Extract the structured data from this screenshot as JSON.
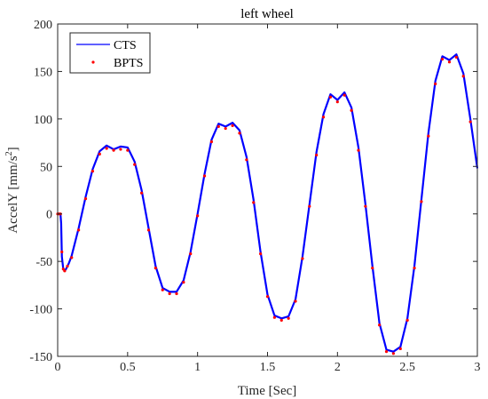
{
  "chart_data": {
    "type": "line",
    "title": "left wheel",
    "xlabel": "Time [Sec]",
    "ylabel_main": "AccelY [mm/s",
    "ylabel_sup": "2",
    "ylabel_close": "]",
    "xlim": [
      0,
      3
    ],
    "ylim": [
      -150,
      200
    ],
    "xticks": [
      0,
      0.5,
      1,
      1.5,
      2,
      2.5,
      3
    ],
    "xtick_labels": [
      "0",
      "0.5",
      "1",
      "1.5",
      "2",
      "2.5",
      "3"
    ],
    "yticks": [
      -150,
      -100,
      -50,
      0,
      50,
      100,
      150,
      200
    ],
    "ytick_labels": [
      "-150",
      "-100",
      "-50",
      "0",
      "50",
      "100",
      "150",
      "200"
    ],
    "grid": false,
    "legend_position": "top-left",
    "series": [
      {
        "name": "CTS",
        "style": "line",
        "color": "#0000ff",
        "x": [
          0,
          0.02,
          0.025,
          0.03,
          0.04,
          0.05,
          0.06,
          0.08,
          0.1,
          0.15,
          0.2,
          0.25,
          0.3,
          0.35,
          0.4,
          0.45,
          0.5,
          0.55,
          0.6,
          0.65,
          0.7,
          0.75,
          0.8,
          0.85,
          0.9,
          0.95,
          1.0,
          1.05,
          1.1,
          1.15,
          1.2,
          1.25,
          1.3,
          1.35,
          1.4,
          1.45,
          1.5,
          1.55,
          1.6,
          1.65,
          1.7,
          1.75,
          1.8,
          1.85,
          1.9,
          1.95,
          2.0,
          2.05,
          2.1,
          2.15,
          2.2,
          2.25,
          2.3,
          2.35,
          2.4,
          2.45,
          2.5,
          2.55,
          2.6,
          2.65,
          2.7,
          2.75,
          2.8,
          2.85,
          2.9,
          2.95,
          3.0
        ],
        "y": [
          0,
          0,
          -10,
          -45,
          -58,
          -60,
          -58,
          -52,
          -44,
          -15,
          18,
          47,
          66,
          72,
          68,
          71,
          70,
          55,
          25,
          -15,
          -55,
          -78,
          -82,
          -82,
          -70,
          -40,
          0,
          42,
          78,
          95,
          92,
          96,
          88,
          60,
          15,
          -40,
          -85,
          -107,
          -110,
          -108,
          -90,
          -45,
          10,
          65,
          105,
          126,
          120,
          128,
          112,
          70,
          10,
          -55,
          -115,
          -143,
          -145,
          -140,
          -110,
          -55,
          15,
          85,
          140,
          166,
          162,
          168,
          148,
          100,
          48
        ]
      },
      {
        "name": "BPTS",
        "style": "markers",
        "color": "#ff0000",
        "x": [
          0,
          0.01,
          0.02,
          0.03,
          0.04,
          0.05,
          0.07,
          0.1,
          0.15,
          0.2,
          0.25,
          0.3,
          0.35,
          0.4,
          0.45,
          0.5,
          0.55,
          0.6,
          0.65,
          0.7,
          0.75,
          0.8,
          0.85,
          0.9,
          0.95,
          1.0,
          1.05,
          1.1,
          1.15,
          1.2,
          1.25,
          1.3,
          1.35,
          1.4,
          1.45,
          1.5,
          1.55,
          1.6,
          1.65,
          1.7,
          1.75,
          1.8,
          1.85,
          1.9,
          1.95,
          2.0,
          2.05,
          2.1,
          2.15,
          2.2,
          2.25,
          2.3,
          2.35,
          2.4,
          2.45,
          2.5,
          2.55,
          2.6,
          2.65,
          2.7,
          2.75,
          2.8,
          2.85,
          2.9,
          2.95
        ],
        "y": [
          0,
          0,
          0,
          -40,
          -58,
          -60,
          -55,
          -46,
          -17,
          16,
          45,
          63,
          69,
          67,
          68,
          67,
          52,
          22,
          -17,
          -57,
          -80,
          -84,
          -84,
          -72,
          -42,
          -2,
          40,
          76,
          92,
          90,
          93,
          85,
          57,
          12,
          -42,
          -87,
          -109,
          -112,
          -110,
          -92,
          -47,
          8,
          62,
          102,
          123,
          118,
          125,
          109,
          67,
          8,
          -57,
          -117,
          -145,
          -147,
          -142,
          -112,
          -57,
          13,
          82,
          137,
          163,
          160,
          165,
          145,
          97
        ]
      }
    ]
  }
}
